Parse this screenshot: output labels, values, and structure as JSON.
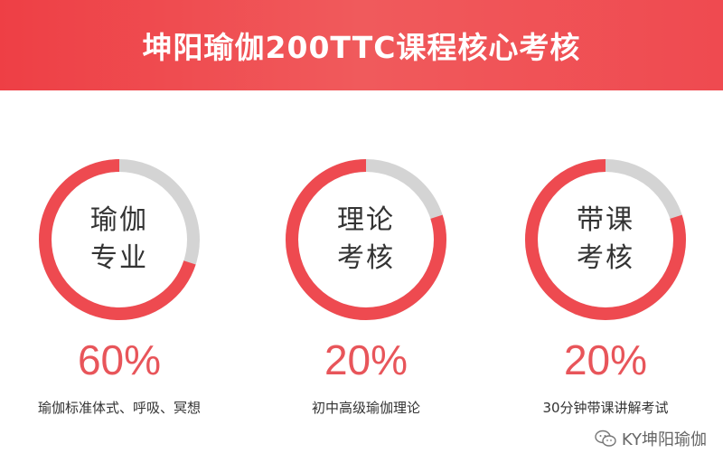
{
  "header": {
    "title": "坤阳瑜伽200TTC课程核心考核"
  },
  "colors": {
    "accent": "#ee3f45",
    "ring_filled": "#ee4a50",
    "ring_remaining": "#d4d4d4",
    "percent_text": "#e8555a"
  },
  "items": [
    {
      "label_line1": "瑜伽",
      "label_line2": "专业",
      "percent_text": "60%",
      "percent_value": 60,
      "description": "瑜伽标准体式、呼吸、冥想"
    },
    {
      "label_line1": "理论",
      "label_line2": "考核",
      "percent_text": "20%",
      "percent_value": 20,
      "description": "初中高级瑜伽理论"
    },
    {
      "label_line1": "带课",
      "label_line2": "考核",
      "percent_text": "20%",
      "percent_value": 20,
      "description": "30分钟带课讲解考试"
    }
  ],
  "watermark": {
    "icon": "wechat-icon",
    "text": "KY坤阳瑜伽"
  }
}
